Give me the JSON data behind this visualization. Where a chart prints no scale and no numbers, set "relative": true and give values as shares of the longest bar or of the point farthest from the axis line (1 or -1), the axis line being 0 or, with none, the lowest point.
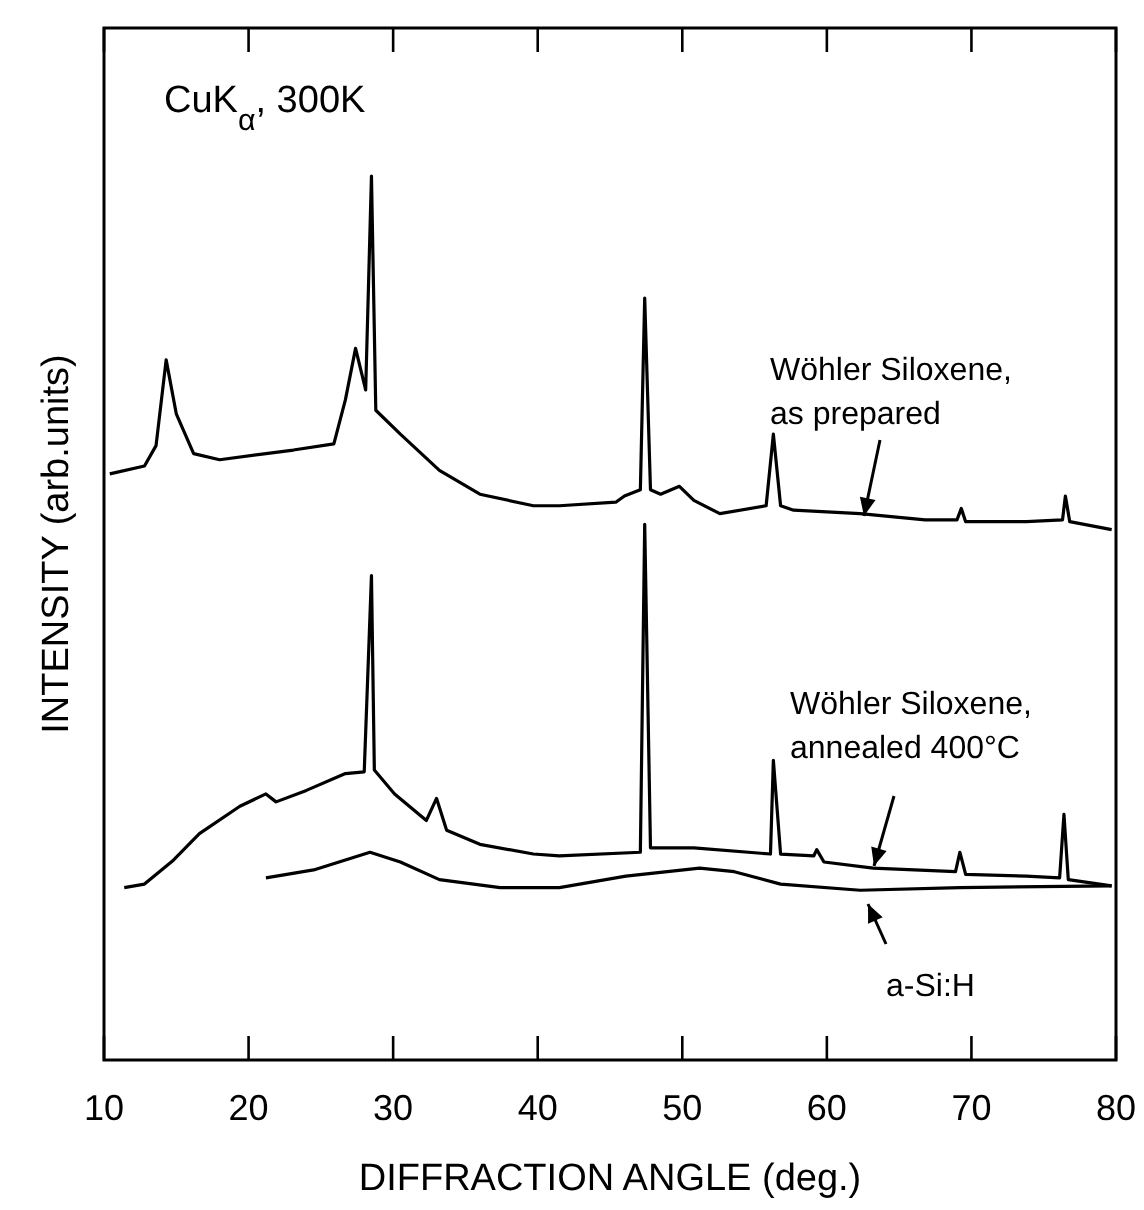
{
  "chart_data": {
    "type": "line",
    "relative": true,
    "xlabel": "DIFFRACTION ANGLE (deg.)",
    "ylabel": "INTENSITY (arb.units)",
    "xlim": [
      10,
      80
    ],
    "xticks": [
      10,
      20,
      30,
      40,
      50,
      60,
      70,
      80
    ],
    "grid": false,
    "line_style": "solid",
    "annotations": [
      "CuK$_{α}$, 300K"
    ],
    "series": [
      {
        "name": "Wöhler Siloxene, as prepared",
        "color": "#000000",
        "x": [
          10.4,
          12.8,
          13.6,
          14.3,
          15,
          16.2,
          18,
          21.2,
          23.1,
          25.9,
          26.7,
          27.4,
          28.1,
          28.5,
          28.8,
          30.5,
          33.2,
          36,
          39.7,
          41.5,
          45.4,
          46,
          47.1,
          47.4,
          47.8,
          48.5,
          49.8,
          50.8,
          52.6,
          55.8,
          56.3,
          56.8,
          57.7,
          62.3,
          66.8,
          69,
          69.3,
          69.6,
          73.8,
          76.3,
          76.5,
          76.8,
          79.7
        ],
        "values": [
          0.663,
          0.672,
          0.695,
          0.792,
          0.731,
          0.686,
          0.679,
          0.686,
          0.69,
          0.697,
          0.747,
          0.805,
          0.758,
          1.0,
          0.735,
          0.708,
          0.667,
          0.64,
          0.627,
          0.627,
          0.631,
          0.638,
          0.645,
          0.862,
          0.645,
          0.64,
          0.649,
          0.633,
          0.618,
          0.627,
          0.708,
          0.627,
          0.622,
          0.618,
          0.611,
          0.611,
          0.624,
          0.609,
          0.609,
          0.611,
          0.638,
          0.609,
          0.6
        ]
      },
      {
        "name": "Wöhler Siloxene, annealed 400°C",
        "color": "#000000",
        "x": [
          11.4,
          12.8,
          14.8,
          16.6,
          19.4,
          21.2,
          21.9,
          24,
          26.7,
          28,
          28.5,
          28.7,
          30.1,
          32.3,
          33,
          33.7,
          36,
          39.7,
          41.5,
          47.1,
          47.4,
          47.8,
          50.8,
          56.1,
          56.3,
          56.8,
          59.1,
          59.3,
          59.8,
          63.2,
          68.9,
          69.2,
          69.6,
          73.8,
          76.1,
          76.4,
          76.7,
          79.7
        ],
        "values": [
          0.195,
          0.199,
          0.226,
          0.256,
          0.287,
          0.301,
          0.292,
          0.305,
          0.324,
          0.326,
          0.548,
          0.328,
          0.301,
          0.271,
          0.296,
          0.26,
          0.244,
          0.233,
          0.231,
          0.235,
          0.606,
          0.24,
          0.24,
          0.233,
          0.339,
          0.233,
          0.231,
          0.238,
          0.224,
          0.217,
          0.213,
          0.235,
          0.21,
          0.208,
          0.206,
          0.278,
          0.204,
          0.197
        ]
      },
      {
        "name": "a-Si:H",
        "color": "#000000",
        "x": [
          21.2,
          24.5,
          28.4,
          30.5,
          33.2,
          37.4,
          41.5,
          46.1,
          51.2,
          53.6,
          56.8,
          62.3,
          69.2,
          79.7
        ],
        "values": [
          0.206,
          0.215,
          0.235,
          0.224,
          0.204,
          0.195,
          0.195,
          0.208,
          0.217,
          0.213,
          0.199,
          0.192,
          0.195,
          0.197
        ]
      }
    ]
  }
}
